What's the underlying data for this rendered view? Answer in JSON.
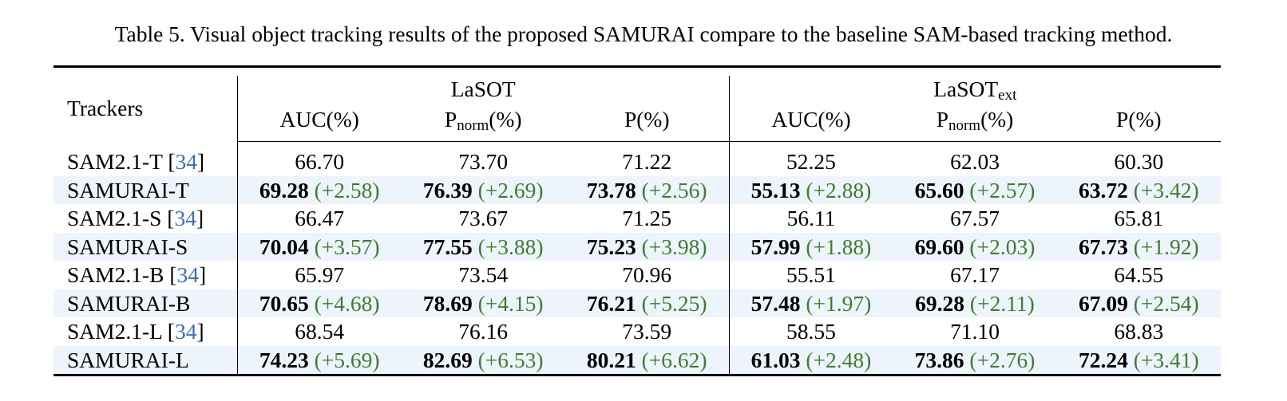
{
  "caption": "Table 5. Visual object tracking results of the proposed SAMURAI compare to the baseline SAM-based tracking method.",
  "header": {
    "trackers_label": "Trackers",
    "groups": [
      {
        "name": "LaSOT",
        "sub": ""
      },
      {
        "name": "LaSOT",
        "sub": "ext"
      }
    ],
    "metrics": {
      "auc": "AUC(%)",
      "pnorm_base": "P",
      "pnorm_sub": "norm",
      "pnorm_suffix": "(%)",
      "p": "P(%)"
    }
  },
  "rows": [
    {
      "name": "SAM2.1-T [",
      "cite": "34",
      "close": "]",
      "values": [
        "66.70",
        "73.70",
        "71.22",
        "52.25",
        "62.03",
        "60.30"
      ],
      "deltas": [
        "",
        "",
        "",
        "",
        "",
        ""
      ]
    },
    {
      "name": "SAMURAI-T",
      "cite": "",
      "close": "",
      "values": [
        "69.28",
        "76.39",
        "73.78",
        "55.13",
        "65.60",
        "63.72"
      ],
      "deltas": [
        "(+2.58)",
        "(+2.69)",
        "(+2.56)",
        "(+2.88)",
        "(+2.57)",
        "(+3.42)"
      ]
    },
    {
      "name": "SAM2.1-S [",
      "cite": "34",
      "close": "]",
      "values": [
        "66.47",
        "73.67",
        "71.25",
        "56.11",
        "67.57",
        "65.81"
      ],
      "deltas": [
        "",
        "",
        "",
        "",
        "",
        ""
      ]
    },
    {
      "name": "SAMURAI-S",
      "cite": "",
      "close": "",
      "values": [
        "70.04",
        "77.55",
        "75.23",
        "57.99",
        "69.60",
        "67.73"
      ],
      "deltas": [
        "(+3.57)",
        "(+3.88)",
        "(+3.98)",
        "(+1.88)",
        "(+2.03)",
        "(+1.92)"
      ]
    },
    {
      "name": "SAM2.1-B [",
      "cite": "34",
      "close": "]",
      "values": [
        "65.97",
        "73.54",
        "70.96",
        "55.51",
        "67.17",
        "64.55"
      ],
      "deltas": [
        "",
        "",
        "",
        "",
        "",
        ""
      ]
    },
    {
      "name": "SAMURAI-B",
      "cite": "",
      "close": "",
      "values": [
        "70.65",
        "78.69",
        "76.21",
        "57.48",
        "69.28",
        "67.09"
      ],
      "deltas": [
        "(+4.68)",
        "(+4.15)",
        "(+5.25)",
        "(+1.97)",
        "(+2.11)",
        "(+2.54)"
      ]
    },
    {
      "name": "SAM2.1-L [",
      "cite": "34",
      "close": "]",
      "values": [
        "68.54",
        "76.16",
        "73.59",
        "58.55",
        "71.10",
        "68.83"
      ],
      "deltas": [
        "",
        "",
        "",
        "",
        "",
        ""
      ]
    },
    {
      "name": "SAMURAI-L",
      "cite": "",
      "close": "",
      "values": [
        "74.23",
        "82.69",
        "80.21",
        "61.03",
        "73.86",
        "72.24"
      ],
      "deltas": [
        "(+5.69)",
        "(+6.53)",
        "(+6.62)",
        "(+2.48)",
        "(+2.76)",
        "(+3.41)"
      ]
    }
  ],
  "colors": {
    "delta": "#3e7d2e",
    "citation": "#3c6fb8",
    "highlight_row": "#eef4fb"
  }
}
